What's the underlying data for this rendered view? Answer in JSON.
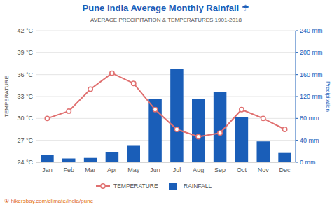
{
  "chart_data": {
    "type": "combo",
    "title": "Pune India Average Monthly Rainfall ☂",
    "subtitle": "AVERAGE PRECIPITATION & TEMPERATURES 1901-2018",
    "annotations": [
      "① hikersbay.com/climate/india/pune"
    ],
    "y_label": "TEMPERATURE",
    "y2_label": "Precipitation",
    "categories": [
      "Jan",
      "Feb",
      "Mar",
      "Apr",
      "May",
      "Jun",
      "Jul",
      "Aug",
      "Sep",
      "Oct",
      "Nov",
      "Dec"
    ],
    "series": [
      {
        "name": "TEMPERATURE",
        "type": "line",
        "marker": "circle",
        "color": "#e07070",
        "values": [
          30.0,
          31.0,
          34.0,
          36.2,
          34.8,
          31.2,
          28.5,
          27.5,
          28.0,
          31.2,
          30.0,
          28.5
        ]
      },
      {
        "name": "RAINFALL",
        "type": "bar",
        "axis": "y2",
        "color": "#1a5eb8",
        "values": [
          13,
          7,
          8,
          18,
          30,
          115,
          170,
          115,
          128,
          82,
          38,
          17
        ]
      }
    ],
    "ylim": [
      24,
      42
    ],
    "yticks": [
      {
        "value": 24,
        "label": "24 °C"
      },
      {
        "value": 27,
        "label": "27 °C"
      },
      {
        "value": 30,
        "label": "30 °C"
      },
      {
        "value": 33,
        "label": "33 °C"
      },
      {
        "value": 36,
        "label": "36 °C"
      },
      {
        "value": 39,
        "label": "39 °C"
      },
      {
        "value": 42,
        "label": "42 °C"
      }
    ],
    "y2lim": [
      0,
      240
    ],
    "y2ticks": [
      {
        "value": 0,
        "label": "0 mm"
      },
      {
        "value": 40,
        "label": "40 mm"
      },
      {
        "value": 80,
        "label": "80 mm"
      },
      {
        "value": 120,
        "label": "120 mm"
      },
      {
        "value": 160,
        "label": "160 mm"
      },
      {
        "value": 200,
        "label": "200 mm"
      },
      {
        "value": 240,
        "label": "240 mm"
      }
    ],
    "grid": true,
    "legend": "bottom"
  }
}
